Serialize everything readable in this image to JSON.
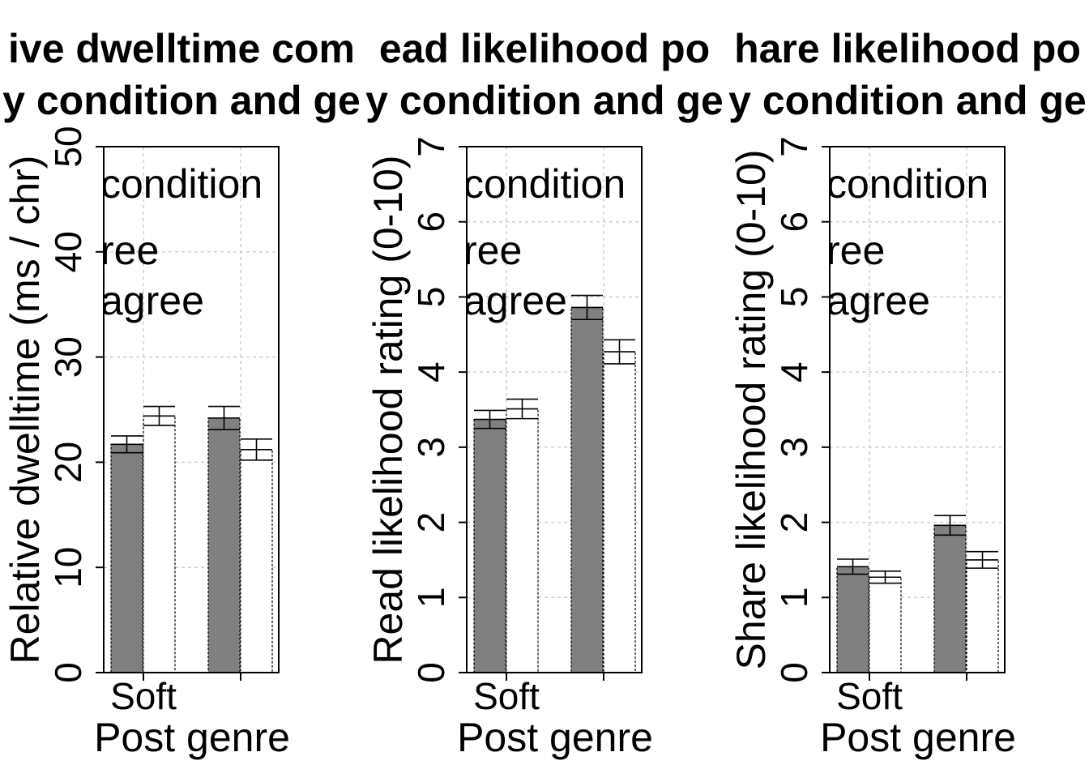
{
  "chart_data": [
    {
      "type": "bar",
      "title_line1": "ive dwelltime com",
      "title_line2": "y condition and ge",
      "ylabel": "Relative dwelltime (ms / chr)",
      "xlabel": "Post genre",
      "categories": [
        "Soft",
        ""
      ],
      "ylim": [
        0,
        50
      ],
      "yticks": [
        "0",
        "10",
        "20",
        "30",
        "40",
        "50"
      ],
      "legend_lines": [
        "condition",
        "ree",
        "agree"
      ],
      "legend_placement": "top-left",
      "grid": true,
      "series": [
        {
          "fill": "#808080",
          "values": [
            21.7,
            24.2
          ],
          "errors": [
            0.8,
            1.1
          ]
        },
        {
          "fill": "#ffffff",
          "values": [
            24.4,
            21.2
          ],
          "errors": [
            0.9,
            1.0
          ]
        }
      ]
    },
    {
      "type": "bar",
      "title_line1": "ead likelihood po",
      "title_line2": "y condition and ge",
      "ylabel": "Read likelihood rating (0-10)",
      "xlabel": "Post genre",
      "categories": [
        "Soft",
        ""
      ],
      "ylim": [
        0,
        7
      ],
      "yticks": [
        "0",
        "1",
        "2",
        "3",
        "4",
        "5",
        "6",
        "7"
      ],
      "legend_lines": [
        "condition",
        "ree",
        "agree"
      ],
      "legend_placement": "top-left",
      "grid": true,
      "series": [
        {
          "fill": "#808080",
          "values": [
            3.37,
            4.86
          ],
          "errors": [
            0.12,
            0.16
          ]
        },
        {
          "fill": "#ffffff",
          "values": [
            3.51,
            4.27
          ],
          "errors": [
            0.13,
            0.16
          ]
        }
      ]
    },
    {
      "type": "bar",
      "title_line1": "hare likelihood po",
      "title_line2": "y condition and ge",
      "ylabel": "Share likelihood rating (0-10)",
      "xlabel": "Post genre",
      "categories": [
        "Soft",
        ""
      ],
      "ylim": [
        0,
        7
      ],
      "yticks": [
        "0",
        "1",
        "2",
        "3",
        "4",
        "5",
        "6",
        "7"
      ],
      "legend_lines": [
        "condition",
        "ree",
        "agree"
      ],
      "legend_placement": "top-left",
      "grid": true,
      "series": [
        {
          "fill": "#808080",
          "values": [
            1.41,
            1.96
          ],
          "errors": [
            0.1,
            0.13
          ]
        },
        {
          "fill": "#ffffff",
          "values": [
            1.27,
            1.5
          ],
          "errors": [
            0.08,
            0.11
          ]
        }
      ]
    }
  ]
}
